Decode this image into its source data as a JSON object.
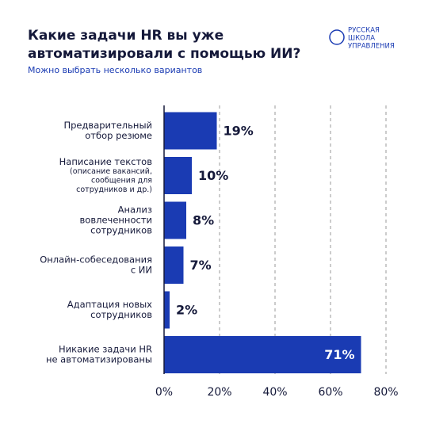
{
  "chart_data": {
    "type": "barh",
    "title": [
      "Какие задачи HR вы уже",
      "автоматизировали с помощью ИИ?"
    ],
    "subtitle": "Можно выбрать несколько вариантов",
    "logo": [
      "РУССКАЯ",
      "ШКОЛА",
      "УПРАВЛЕНИЯ"
    ],
    "categories": [
      [
        "Предварительный",
        "отбор резюме"
      ],
      [
        "Написание текстов"
      ],
      [
        "Анализ",
        "вовлеченности",
        "сотрудников"
      ],
      [
        "Онлайн-собеседования",
        "с ИИ"
      ],
      [
        "Адаптация новых",
        "сотрудников"
      ],
      [
        "Никакие задачи HR",
        "не автоматизированы"
      ]
    ],
    "category_notes": [
      null,
      [
        "(описание вакансий,",
        "сообщения для",
        "сотрудников и др.)"
      ],
      null,
      null,
      null,
      null
    ],
    "values": [
      19,
      10,
      8,
      7,
      2,
      71
    ],
    "value_labels": [
      "19%",
      "10%",
      "8%",
      "7%",
      "2%",
      "71%"
    ],
    "color": "#1a3bb3",
    "xlim": [
      0,
      80
    ],
    "xticks": [
      {
        "value": 0,
        "label": "0%"
      },
      {
        "value": 20,
        "label": "20%"
      },
      {
        "value": 40,
        "label": "40%"
      },
      {
        "value": 60,
        "label": "60%"
      },
      {
        "value": 80,
        "label": "80%"
      }
    ],
    "grid": true
  }
}
